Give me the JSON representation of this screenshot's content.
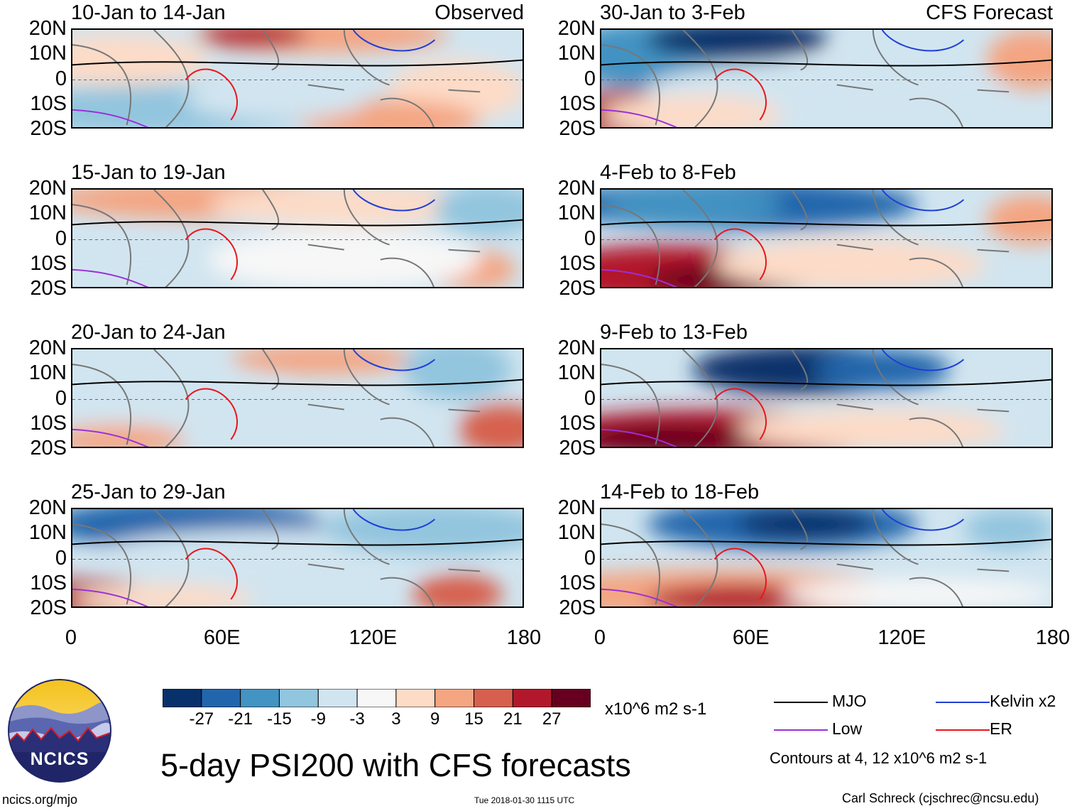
{
  "chart_data": {
    "type": "heatmap",
    "title": "5-day PSI200 with CFS forecasts",
    "units": "x10^6 m2 s-1",
    "lat_labels": [
      "20N",
      "10N",
      "0",
      "10S",
      "20S"
    ],
    "lon_labels": [
      "0",
      "60E",
      "120E",
      "180"
    ],
    "lat_range": [
      -20,
      20
    ],
    "lon_range": [
      0,
      180
    ],
    "colorbar": {
      "ticks": [
        "-27",
        "-21",
        "-15",
        "-9",
        "-3",
        "3",
        "9",
        "15",
        "21",
        "27"
      ],
      "colors": [
        "#08306b",
        "#2166ac",
        "#4393c3",
        "#92c5de",
        "#d1e5f0",
        "#f7f7f7",
        "#fddbc7",
        "#f4a582",
        "#d6604d",
        "#b2182b",
        "#67001f"
      ]
    },
    "panels": [
      {
        "period": "10-Jan to 14-Jan",
        "tag": "Observed",
        "column": "left"
      },
      {
        "period": "15-Jan to 19-Jan",
        "tag": "",
        "column": "left"
      },
      {
        "period": "20-Jan to 24-Jan",
        "tag": "",
        "column": "left"
      },
      {
        "period": "25-Jan to 29-Jan",
        "tag": "",
        "column": "left"
      },
      {
        "period": "30-Jan to 3-Feb",
        "tag": "CFS Forecast",
        "column": "right"
      },
      {
        "period": "4-Feb to 8-Feb",
        "tag": "",
        "column": "right"
      },
      {
        "period": "9-Feb to 13-Feb",
        "tag": "",
        "column": "right"
      },
      {
        "period": "14-Feb to 18-Feb",
        "tag": "",
        "column": "right"
      }
    ],
    "legend": [
      {
        "label": "MJO",
        "color": "#000000"
      },
      {
        "label": "Kelvin x2",
        "color": "#1f3fd6"
      },
      {
        "label": "Low",
        "color": "#9b30d9"
      },
      {
        "label": "ER",
        "color": "#e8161b"
      }
    ],
    "contour_note": "Contours at 4, 12 x10^6 m2 s-1"
  },
  "footer": {
    "logo_text": "NCICS",
    "url": "ncics.org/mjo",
    "timestamp": "Tue 2018-01-30 1115 UTC",
    "author": "Carl Schreck (cjschrec@ncsu.edu)"
  }
}
